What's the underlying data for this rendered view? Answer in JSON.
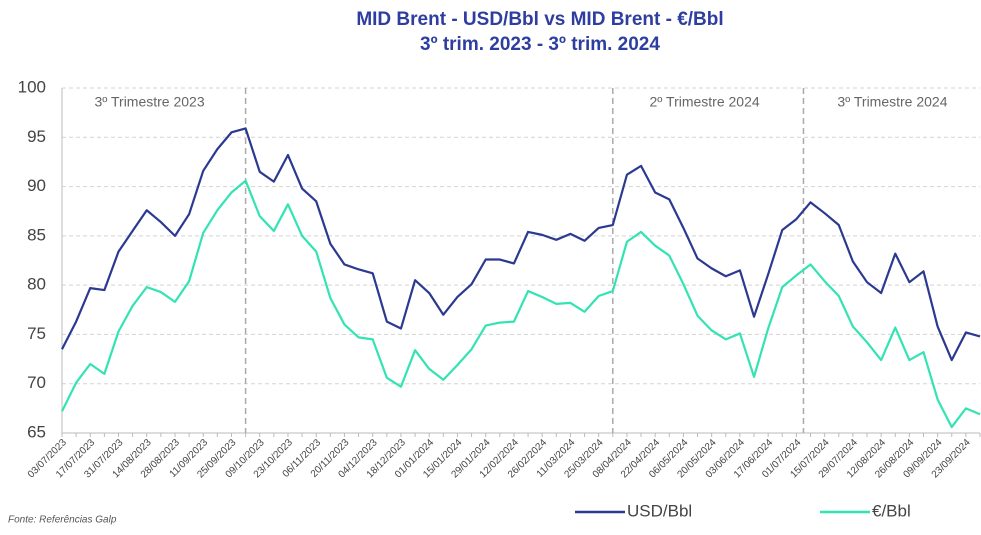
{
  "chart_data": {
    "type": "line",
    "title": [
      "MID Brent - USD/Bbl vs MID Brent - €/Bbl",
      "3º trim. 2023 - 3º trim. 2024"
    ],
    "categories": [
      "03/07/2023",
      null,
      "17/07/2023",
      null,
      "31/07/2023",
      null,
      "14/08/2023",
      null,
      "28/08/2023",
      null,
      "11/09/2023",
      null,
      "25/09/2023",
      null,
      "09/10/2023",
      null,
      "23/10/2023",
      null,
      "06/11/2023",
      null,
      "20/11/2023",
      null,
      "04/12/2023",
      null,
      "18/12/2023",
      null,
      "01/01/2024",
      null,
      "15/01/2024",
      null,
      "29/01/2024",
      null,
      "12/02/2024",
      null,
      "26/02/2024",
      null,
      "11/03/2024",
      null,
      "25/03/2024",
      null,
      "08/04/2024",
      null,
      "22/04/2024",
      null,
      "06/05/2024",
      null,
      "20/05/2024",
      null,
      "03/06/2024",
      null,
      "17/06/2024",
      null,
      "01/07/2024",
      null,
      "15/07/2024",
      null,
      "29/07/2024",
      null,
      "12/08/2024",
      null,
      "26/08/2024",
      null,
      "09/09/2024",
      null,
      "23/09/2024",
      null
    ],
    "series": [
      {
        "name": "USD/Bbl",
        "color": "#2b3990",
        "values": [
          73.5,
          76.3,
          79.7,
          79.5,
          83.4,
          85.5,
          87.6,
          86.4,
          85,
          87.2,
          91.6,
          93.8,
          95.5,
          95.9,
          91.5,
          90.5,
          93.2,
          89.8,
          88.5,
          84.2,
          82.1,
          81.6,
          81.2,
          76.3,
          75.6,
          80.5,
          79.2,
          77,
          78.8,
          80.1,
          82.6,
          82.6,
          82.2,
          85.4,
          85.1,
          84.6,
          85.2,
          84.5,
          85.8,
          86.1,
          91.2,
          92.1,
          89.4,
          88.7,
          85.8,
          82.7,
          81.7,
          80.9,
          81.5,
          76.8,
          81.1,
          85.6,
          86.7,
          88.4,
          87.3,
          86.1,
          82.4,
          80.3,
          79.2,
          83.2,
          80.3,
          81.4,
          75.8,
          72.4,
          75.2,
          74.8
        ]
      },
      {
        "name": "€/Bbl",
        "color": "#33e3b3",
        "values": [
          67.2,
          70.1,
          72,
          71,
          75.3,
          77.9,
          79.8,
          79.3,
          78.3,
          80.4,
          85.3,
          87.6,
          89.4,
          90.6,
          87,
          85.5,
          88.2,
          85,
          83.4,
          78.7,
          76,
          74.7,
          74.5,
          70.6,
          69.7,
          73.4,
          71.5,
          70.4,
          71.9,
          73.5,
          75.9,
          76.2,
          76.3,
          79.4,
          78.8,
          78.1,
          78.2,
          77.3,
          78.9,
          79.4,
          84.4,
          85.4,
          84,
          83,
          80.1,
          76.9,
          75.4,
          74.5,
          75.1,
          70.7,
          75.6,
          79.8,
          81,
          82.1,
          80.4,
          78.9,
          75.8,
          74.2,
          72.4,
          75.7,
          72.4,
          73.2,
          68.4,
          65.6,
          67.5,
          66.9
        ]
      }
    ],
    "annotations": [
      "3º Trimestre 2023",
      "2º Trimestre 2024",
      "3º Trimestre 2024"
    ],
    "ylim": [
      65,
      100
    ],
    "yticks": [
      65,
      70,
      75,
      80,
      85,
      90,
      95,
      100
    ],
    "grid": true,
    "legend": "bottom",
    "source": "Fonte: Referências Galp"
  }
}
